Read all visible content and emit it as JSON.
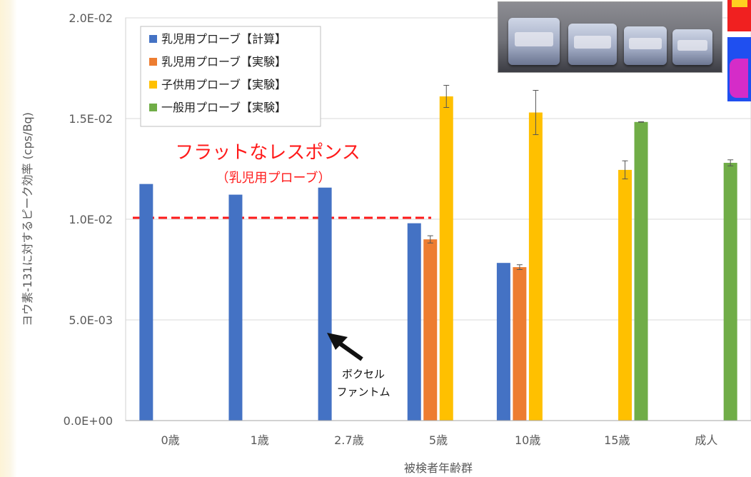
{
  "chart_data": {
    "type": "bar",
    "title": "",
    "xlabel": "被検者年齢群",
    "ylabel": "ヨウ素-131に対するピーク効率 (cps/Bq)",
    "ylim": [
      0,
      0.02
    ],
    "yticks": [
      "0.0E+00",
      "5.0E-03",
      "1.0E-02",
      "1.5E-02",
      "2.0E-02"
    ],
    "ytick_values": [
      0,
      0.005,
      0.01,
      0.015,
      0.02
    ],
    "categories": [
      "0歳",
      "1歳",
      "2.7歳",
      "5歳",
      "10歳",
      "15歳",
      "成人"
    ],
    "series": [
      {
        "name": "乳児用プローブ【計算】",
        "color": "#4472c4",
        "values": [
          0.01175,
          0.01122,
          0.01157,
          0.0098,
          0.00783,
          null,
          null
        ]
      },
      {
        "name": "乳児用プローブ【実験】",
        "color": "#ed7d31",
        "values": [
          null,
          null,
          null,
          0.009,
          0.00762,
          null,
          null
        ],
        "errors": [
          null,
          null,
          null,
          0.00018,
          0.00012,
          null,
          null
        ]
      },
      {
        "name": "子供用プローブ【実験】",
        "color": "#ffc000",
        "values": [
          null,
          null,
          null,
          0.0161,
          0.0153,
          0.01245,
          null
        ],
        "errors": [
          null,
          null,
          null,
          0.00055,
          0.0011,
          0.00045,
          null
        ]
      },
      {
        "name": "一般用プローブ【実験】",
        "color": "#70ad47",
        "values": [
          null,
          null,
          null,
          null,
          null,
          0.01483,
          0.0128
        ],
        "errors": [
          null,
          null,
          null,
          null,
          null,
          1e-05,
          0.00015
        ]
      }
    ],
    "legend_position": "top-left",
    "reference_line": {
      "y": 0.01007,
      "color": "#ff1a1a",
      "style": "dashed"
    },
    "annotations": {
      "main": "フラットなレスポンス",
      "sub": "（乳児用プローブ）",
      "arrow_line1": "ボクセル",
      "arrow_line2": "ファントム"
    }
  }
}
